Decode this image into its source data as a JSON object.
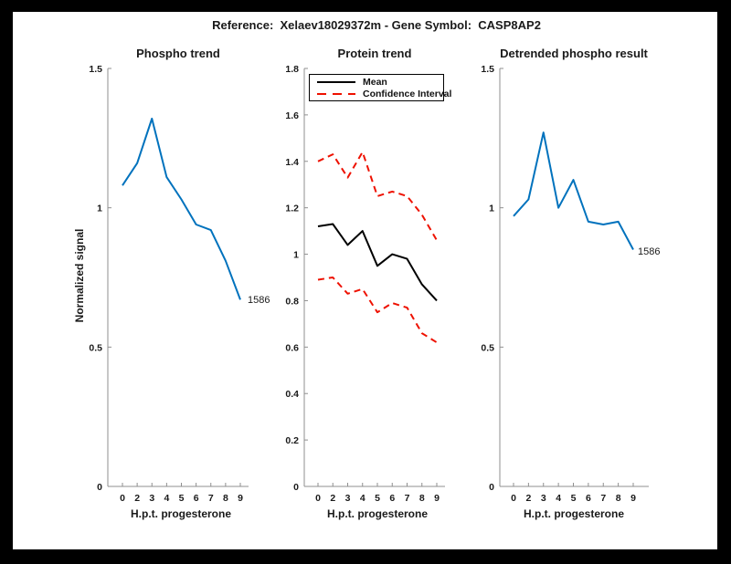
{
  "window": {
    "frame_color": "#000000",
    "canvas_color": "#ffffff"
  },
  "header": {
    "title": "Reference:  Xelaev18029372m - Gene Symbol:  CASP8AP2"
  },
  "palette": {
    "blue": "#0072BD",
    "red": "#EE1100",
    "black": "#000000",
    "axis": "#8f8f8f",
    "text": "#1a1a1a"
  },
  "chart_data": [
    {
      "type": "line",
      "title": "Phospho trend",
      "xlabel": "H.p.t. progesterone",
      "ylabel": "Normalized signal",
      "x_tick_labels": [
        "0",
        "2",
        "3",
        "4",
        "5",
        "6",
        "7",
        "8",
        "9"
      ],
      "ylim": [
        0,
        1.5
      ],
      "yticks": [
        0,
        0.5,
        1,
        1.5
      ],
      "ytick_labels": [
        "0",
        "0.5",
        "1",
        "1.5"
      ],
      "grid": false,
      "legend": null,
      "end_label": "1586",
      "series": [
        {
          "name": "phospho-signal",
          "color_key": "blue",
          "style": "solid",
          "values": [
            1.08,
            1.16,
            1.32,
            1.11,
            1.03,
            0.94,
            0.92,
            0.81,
            0.67
          ]
        }
      ]
    },
    {
      "type": "line",
      "title": "Protein trend",
      "xlabel": "H.p.t. progesterone",
      "ylabel": "",
      "x_tick_labels": [
        "0",
        "2",
        "3",
        "4",
        "5",
        "6",
        "7",
        "8",
        "9"
      ],
      "ylim": [
        0,
        1.8
      ],
      "yticks": [
        0,
        0.2,
        0.4,
        0.6,
        0.8,
        1,
        1.2,
        1.4,
        1.6,
        1.8
      ],
      "ytick_labels": [
        "0",
        "0.2",
        "0.4",
        "0.6",
        "0.8",
        "1",
        "1.2",
        "1.4",
        "1.6",
        "1.8"
      ],
      "grid": false,
      "legend": {
        "position": "northwest",
        "entries": [
          "Mean",
          "Confidence Interval"
        ]
      },
      "end_label": null,
      "series": [
        {
          "name": "mean",
          "color_key": "black",
          "style": "solid",
          "values": [
            1.12,
            1.13,
            1.04,
            1.1,
            0.95,
            1.0,
            0.98,
            0.87,
            0.8
          ]
        },
        {
          "name": "confidence-interval-upper",
          "color_key": "red",
          "style": "dashed",
          "values": [
            1.4,
            1.43,
            1.33,
            1.44,
            1.25,
            1.27,
            1.25,
            1.17,
            1.06
          ]
        },
        {
          "name": "confidence-interval-lower",
          "color_key": "red",
          "style": "dashed",
          "values": [
            0.89,
            0.9,
            0.83,
            0.85,
            0.75,
            0.79,
            0.77,
            0.66,
            0.62
          ]
        }
      ]
    },
    {
      "type": "line",
      "title": "Detrended phospho result",
      "xlabel": "H.p.t. progesterone",
      "ylabel": "",
      "x_tick_labels": [
        "0",
        "2",
        "3",
        "4",
        "5",
        "6",
        "7",
        "8",
        "9"
      ],
      "ylim": [
        0,
        1.5
      ],
      "yticks": [
        0,
        0.5,
        1,
        1.5
      ],
      "ytick_labels": [
        "0",
        "0.5",
        "1",
        "1.5"
      ],
      "grid": false,
      "legend": null,
      "end_label": "1586",
      "series": [
        {
          "name": "detrended-phospho",
          "color_key": "blue",
          "style": "solid",
          "values": [
            0.97,
            1.03,
            1.27,
            1.0,
            1.1,
            0.95,
            0.94,
            0.95,
            0.85
          ]
        }
      ]
    }
  ]
}
